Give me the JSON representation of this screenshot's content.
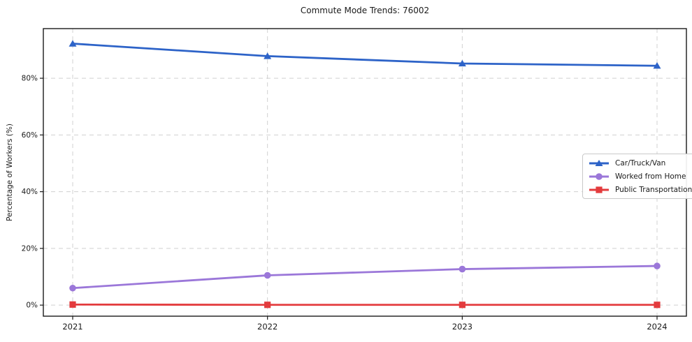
{
  "title": "Commute Mode Trends: 76002",
  "chart_data": {
    "type": "line",
    "title": "Commute Mode Trends: 76002",
    "xlabel": "",
    "ylabel": "Percentage of Workers (%)",
    "categories": [
      "2021",
      "2022",
      "2023",
      "2024"
    ],
    "series": [
      {
        "name": "Car/Truck/Van",
        "color": "#2d63c8",
        "marker": "triangle",
        "values": [
          92.2,
          87.8,
          85.2,
          84.4
        ]
      },
      {
        "name": "Worked from Home",
        "color": "#9b77d9",
        "marker": "circle",
        "values": [
          6.0,
          10.5,
          12.7,
          13.8
        ]
      },
      {
        "name": "Public Transportation",
        "color": "#e33b3d",
        "marker": "square",
        "values": [
          0.2,
          0.1,
          0.1,
          0.1
        ]
      }
    ],
    "yticks": [
      0,
      20,
      40,
      60,
      80
    ],
    "ytick_labels": [
      "0%",
      "20%",
      "40%",
      "60%",
      "80%"
    ],
    "ylim": [
      -3.9,
      97.5
    ],
    "grid": true,
    "grid_style": "dashed",
    "grid_color": "#d0d0d0",
    "frame_color": "#1a1a1a",
    "legend_position": "center-right"
  }
}
